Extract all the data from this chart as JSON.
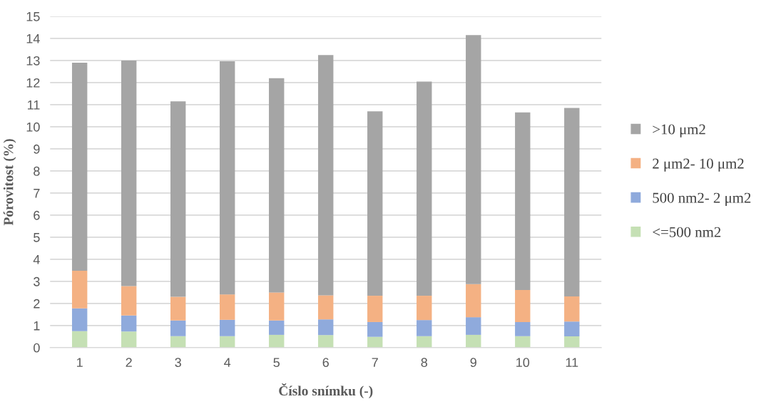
{
  "chart_data": {
    "type": "bar",
    "stacked": true,
    "xlabel": "Číslo snímku (-)",
    "ylabel": "Pórovitost (%)",
    "categories": [
      "1",
      "2",
      "3",
      "4",
      "5",
      "6",
      "7",
      "8",
      "9",
      "10",
      "11"
    ],
    "series": [
      {
        "name": "<=500 nm2",
        "color": "#c5e0b4",
        "values": [
          0.75,
          0.73,
          0.52,
          0.52,
          0.58,
          0.57,
          0.49,
          0.52,
          0.58,
          0.52,
          0.51
        ]
      },
      {
        "name": "500 nm2- 2 μm2",
        "color": "#8faadc",
        "values": [
          1.03,
          0.73,
          0.71,
          0.74,
          0.65,
          0.71,
          0.67,
          0.73,
          0.8,
          0.64,
          0.67
        ]
      },
      {
        "name": "2 μm2- 10 μm2",
        "color": "#f4b183",
        "values": [
          1.7,
          1.33,
          1.07,
          1.15,
          1.27,
          1.09,
          1.19,
          1.1,
          1.5,
          1.45,
          1.14
        ]
      },
      {
        "name": ">10 μm2",
        "color": "#a5a5a5",
        "values": [
          9.42,
          10.21,
          8.85,
          10.56,
          9.7,
          10.88,
          8.35,
          9.7,
          11.27,
          8.04,
          8.53
        ]
      }
    ],
    "ylim": [
      0,
      15
    ],
    "yticks": [
      0,
      1,
      2,
      3,
      4,
      5,
      6,
      7,
      8,
      9,
      10,
      11,
      12,
      13,
      14,
      15
    ],
    "grid": "y",
    "legend": "right"
  }
}
